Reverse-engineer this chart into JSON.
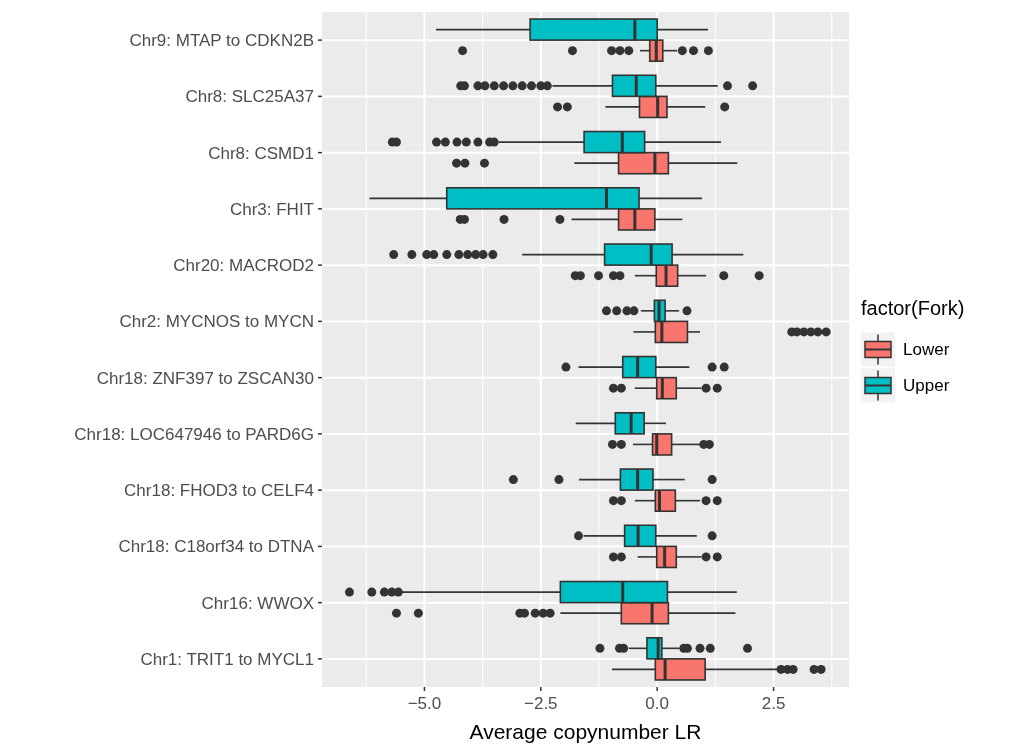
{
  "chart_data": {
    "type": "box",
    "orientation": "horizontal",
    "xlabel": "Average copynumber LR",
    "legend_title": "factor(Fork)",
    "legend": "right",
    "grid": true,
    "categories": [
      "Chr9: MTAP to CDKN2B",
      "Chr8: SLC25A37",
      "Chr8: CSMD1",
      "Chr3: FHIT",
      "Chr20: MACROD2",
      "Chr2: MYCNOS to MYCN",
      "Chr18: ZNF397 to ZSCAN30",
      "Chr18: LOC647946 to PARD6G",
      "Chr18: FHOD3 to CELF4",
      "Chr18: C18orf34 to DTNA",
      "Chr16: WWOX",
      "Chr1: TRIT1 to MYCL1"
    ],
    "xlim": [
      -7.2,
      4.12
    ],
    "xticks": [
      {
        "value": -5,
        "label": "−5.0"
      },
      {
        "value": -2.5,
        "label": "−2.5"
      },
      {
        "value": 0,
        "label": "0.0"
      },
      {
        "value": 2.5,
        "label": "2.5"
      }
    ],
    "series": [
      {
        "name": "Lower",
        "color": "#f8766d",
        "boxes": [
          {
            "low": -0.37,
            "q1": -0.16,
            "median": -0.02,
            "q3": 0.12,
            "high": 0.43,
            "outliers": [
              -4.18,
              -1.82,
              -0.98,
              -0.8,
              -0.61,
              0.54,
              0.78,
              1.1
            ]
          },
          {
            "low": -1.11,
            "q1": -0.38,
            "median": 0.01,
            "q3": 0.21,
            "high": 1.03,
            "outliers": [
              -2.14,
              -1.93,
              1.45
            ]
          },
          {
            "low": -1.78,
            "q1": -0.83,
            "median": -0.05,
            "q3": 0.24,
            "high": 1.72,
            "outliers": [
              -4.31,
              -4.13,
              -3.71
            ]
          },
          {
            "low": -1.84,
            "q1": -0.83,
            "median": -0.48,
            "q3": -0.05,
            "high": 0.54,
            "outliers": [
              -4.23,
              -4.14,
              -3.29,
              -2.09
            ]
          },
          {
            "low": -0.48,
            "q1": -0.02,
            "median": 0.19,
            "q3": 0.44,
            "high": 1.05,
            "outliers": [
              -1.76,
              -1.65,
              -1.26,
              -0.94,
              -0.8,
              1.43,
              2.19
            ]
          },
          {
            "low": -0.51,
            "q1": -0.04,
            "median": 0.1,
            "q3": 0.65,
            "high": 0.92,
            "outliers": [
              2.89,
              3.0,
              3.15,
              3.3,
              3.45,
              3.63
            ]
          },
          {
            "low": -0.48,
            "q1": -0.01,
            "median": 0.11,
            "q3": 0.41,
            "high": 0.95,
            "outliers": [
              -0.94,
              -0.77,
              1.05,
              1.29
            ]
          },
          {
            "low": -0.52,
            "q1": -0.1,
            "median": -0.01,
            "q3": 0.31,
            "high": 0.92,
            "outliers": [
              -0.96,
              -0.77,
              1.0,
              1.12
            ]
          },
          {
            "low": -0.48,
            "q1": -0.04,
            "median": 0.05,
            "q3": 0.39,
            "high": 0.92,
            "outliers": [
              -0.94,
              -0.77,
              1.05,
              1.29
            ]
          },
          {
            "low": -0.42,
            "q1": -0.01,
            "median": 0.16,
            "q3": 0.41,
            "high": 0.95,
            "outliers": [
              -0.94,
              -0.77,
              1.05,
              1.29
            ]
          },
          {
            "low": -2.08,
            "q1": -0.77,
            "median": -0.11,
            "q3": 0.24,
            "high": 1.68,
            "outliers": [
              -5.6,
              -5.13,
              -2.95,
              -2.85,
              -2.62,
              -2.45,
              -2.3
            ]
          },
          {
            "low": -0.97,
            "q1": -0.04,
            "median": 0.17,
            "q3": 1.03,
            "high": 2.63,
            "outliers": [
              2.66,
              2.8,
              2.92,
              3.37,
              3.52
            ]
          }
        ]
      },
      {
        "name": "Upper",
        "color": "#00bfc4",
        "boxes": [
          {
            "low": -4.75,
            "q1": -2.73,
            "median": -0.48,
            "q3": 0.0,
            "high": 1.09
          },
          {
            "low": -2.25,
            "q1": -0.96,
            "median": -0.45,
            "q3": -0.03,
            "high": 1.3,
            "outliers": [
              -4.22,
              -4.14,
              -3.85,
              -3.7,
              -3.5,
              -3.3,
              -3.1,
              -2.9,
              -2.7,
              -2.5,
              -2.36,
              1.51,
              2.05
            ]
          },
          {
            "low": -3.4,
            "q1": -1.57,
            "median": -0.75,
            "q3": -0.27,
            "high": 1.37,
            "outliers": [
              -5.69,
              -5.6,
              -4.74,
              -4.55,
              -4.3,
              -4.1,
              -3.85,
              -3.6,
              -3.5
            ]
          },
          {
            "low": -6.18,
            "q1": -4.52,
            "median": -1.09,
            "q3": -0.39,
            "high": 0.96
          },
          {
            "low": -2.9,
            "q1": -1.13,
            "median": -0.13,
            "q3": 0.32,
            "high": 1.85,
            "outliers": [
              -5.66,
              -5.27,
              -4.95,
              -4.8,
              -4.52,
              -4.26,
              -4.07,
              -3.9,
              -3.74,
              -3.53
            ]
          },
          {
            "low": -0.35,
            "q1": -0.06,
            "median": 0.04,
            "q3": 0.17,
            "high": 0.47,
            "outliers": [
              -1.09,
              -0.87,
              -0.65,
              -0.5,
              0.64
            ]
          },
          {
            "low": -1.69,
            "q1": -0.74,
            "median": -0.42,
            "q3": -0.03,
            "high": 0.69,
            "outliers": [
              -1.96,
              1.18,
              1.44
            ]
          },
          {
            "low": -1.75,
            "q1": -0.9,
            "median": -0.56,
            "q3": -0.28,
            "high": 0.19
          },
          {
            "low": -1.68,
            "q1": -0.79,
            "median": -0.42,
            "q3": -0.09,
            "high": 0.59,
            "outliers": [
              -3.09,
              -2.11,
              1.18
            ]
          },
          {
            "low": -1.58,
            "q1": -0.7,
            "median": -0.41,
            "q3": -0.03,
            "high": 0.85,
            "outliers": [
              -1.69,
              1.18
            ]
          },
          {
            "low": -5.48,
            "q1": -2.08,
            "median": -0.74,
            "q3": 0.22,
            "high": 1.71,
            "outliers": [
              -6.61,
              -6.13,
              -5.86,
              -5.7,
              -5.56
            ]
          },
          {
            "low": -0.61,
            "q1": -0.22,
            "median": 0.02,
            "q3": 0.1,
            "high": 0.47,
            "outliers": [
              -1.23,
              -0.81,
              -0.72,
              0.57,
              0.65,
              0.92,
              1.14,
              1.94
            ]
          }
        ]
      }
    ]
  }
}
